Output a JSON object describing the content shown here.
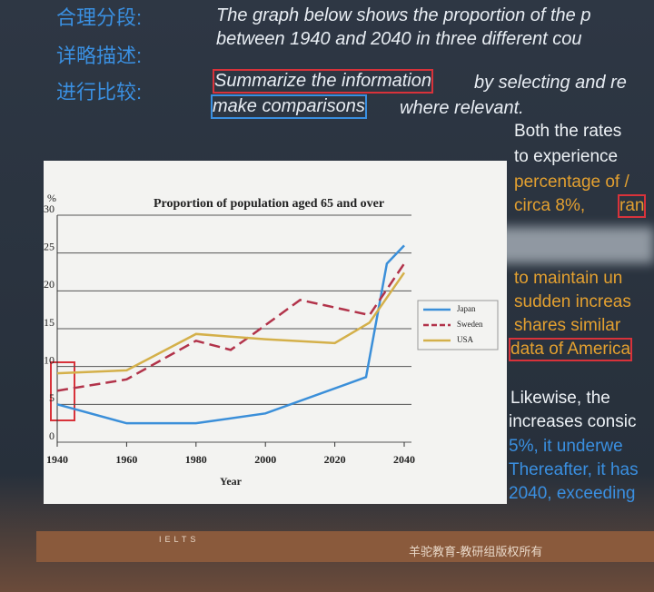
{
  "slide": {
    "labels": [
      "合理分段:",
      "详略描述:",
      "进行比较:"
    ],
    "prompt": [
      "The graph below shows the proportion of the p",
      "between 1940 and 2040  in three different cou"
    ],
    "instr1": [
      "Summarize the information",
      "by selecting and re"
    ],
    "instr2": [
      "make comparisons",
      "where relevant."
    ],
    "right_top": [
      "Both the rates",
      "to experience",
      "percentage of /",
      "circa 8%,",
      "ran",
      "to maintain un",
      "sudden increas",
      "shares similar",
      "data of America"
    ],
    "right_bottom": [
      "Likewise, the",
      "increases consic",
      "5%, it underwe",
      "Thereafter, it has",
      "2040, exceeding"
    ],
    "footer": [
      "IELTS",
      "羊驼教育-教研组版权所有"
    ]
  },
  "chart_data": {
    "type": "line",
    "title": "Proportion of population aged 65 and over",
    "y_label": "%",
    "x_label": "Year",
    "xlim": [
      1940,
      2040
    ],
    "xticks": [
      1940,
      1960,
      1980,
      2000,
      2020,
      2040
    ],
    "ylim": [
      0,
      30
    ],
    "yticks": [
      0,
      5,
      10,
      15,
      20,
      25,
      30
    ],
    "grid": true,
    "series": [
      {
        "name": "Japan",
        "color": "#3b8fd9",
        "dashed": false,
        "x": [
          1940,
          1960,
          1980,
          2000,
          2029,
          2035,
          2040
        ],
        "values": [
          5,
          2.5,
          2.5,
          3.8,
          8.6,
          23.6,
          26
        ]
      },
      {
        "name": "Sweden",
        "color": "#b2334a",
        "dashed": true,
        "x": [
          1940,
          1960,
          1980,
          1990,
          1995,
          2010,
          2030,
          2040
        ],
        "values": [
          6.8,
          8.3,
          13.4,
          12.2,
          13.8,
          18.8,
          16.8,
          23.6
        ]
      },
      {
        "name": "USA",
        "color": "#d4b04a",
        "dashed": false,
        "x": [
          1940,
          1960,
          1980,
          2000,
          2020,
          2030,
          2040
        ],
        "values": [
          9.1,
          9.5,
          14.3,
          13.6,
          13.1,
          15.8,
          22.4
        ]
      }
    ]
  }
}
